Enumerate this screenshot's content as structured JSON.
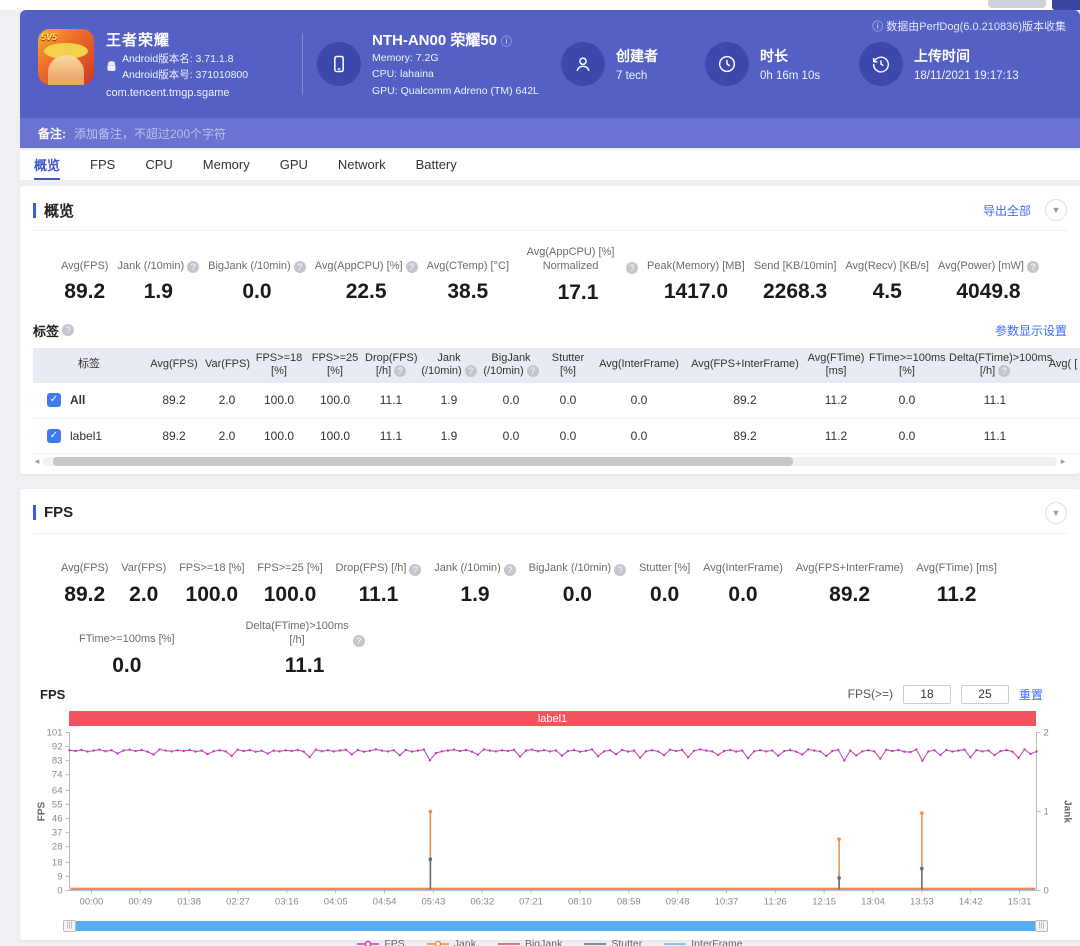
{
  "browser": {
    "note": ""
  },
  "collector_note": "ⓘ 数据由PerfDog(6.0.210836)版本收集",
  "header": {
    "app": {
      "name": "王者荣耀",
      "badge": "5V5",
      "version_name": "Android版本名: 3.71.1.8",
      "version_code": "Android版本号: 371010800",
      "package": "com.tencent.tmgp.sgame"
    },
    "device": {
      "name": "NTH-AN00 荣耀50",
      "info_icon": "ⓘ",
      "memory": "Memory: 7.2G",
      "cpu": "CPU: lahaina",
      "gpu": "GPU: Qualcomm Adreno (TM) 642L"
    },
    "creator": {
      "label": "创建者",
      "value": "7 tech"
    },
    "duration": {
      "label": "时长",
      "value": "0h 16m 10s"
    },
    "upload": {
      "label": "上传时间",
      "value": "18/11/2021 19:17:13"
    },
    "note": {
      "label": "备注:",
      "placeholder": "添加备注，不超过200个字符"
    }
  },
  "tabs": {
    "active_index": 0,
    "items": [
      "概览",
      "FPS",
      "CPU",
      "Memory",
      "GPU",
      "Network",
      "Battery"
    ]
  },
  "overview": {
    "title": "概览",
    "export_label": "导出全部",
    "metrics": [
      {
        "label": "Avg(FPS)",
        "value": "89.2",
        "help": false
      },
      {
        "label": "Jank (/10min)",
        "value": "1.9",
        "help": true
      },
      {
        "label": "BigJank (/10min)",
        "value": "0.0",
        "help": true
      },
      {
        "label": "Avg(AppCPU) [%]",
        "value": "22.5",
        "help": true
      },
      {
        "label": "Avg(CTemp) [°C]",
        "value": "38.5",
        "help": false
      },
      {
        "label": "Avg(AppCPU) [%] Normalized",
        "value": "17.1",
        "help": true
      },
      {
        "label": "Peak(Memory) [MB]",
        "value": "1417.0",
        "help": false
      },
      {
        "label": "Send [KB/10min]",
        "value": "2268.3",
        "help": false
      },
      {
        "label": "Avg(Recv) [KB/s]",
        "value": "4.5",
        "help": false
      },
      {
        "label": "Avg(Power) [mW]",
        "value": "4049.8",
        "help": true
      }
    ],
    "labels_section": {
      "title": "标签",
      "help": true,
      "settings_label": "参数显示设置",
      "columns": [
        {
          "label": "标签",
          "help": false
        },
        {
          "label": "Avg(FPS)",
          "help": false
        },
        {
          "label": "Var(FPS)",
          "help": false
        },
        {
          "label": "FPS>=18 [%]",
          "help": false
        },
        {
          "label": "FPS>=25 [%]",
          "help": false
        },
        {
          "label": "Drop(FPS) [/h]",
          "help": true
        },
        {
          "label": "Jank (/10min)",
          "help": true
        },
        {
          "label": "BigJank (/10min)",
          "help": true
        },
        {
          "label": "Stutter [%]",
          "help": false
        },
        {
          "label": "Avg(InterFrame)",
          "help": false
        },
        {
          "label": "Avg(FPS+InterFrame)",
          "help": false
        },
        {
          "label": "Avg(FTime) [ms]",
          "help": false
        },
        {
          "label": "FTime>=100ms [%]",
          "help": false
        },
        {
          "label": "Delta(FTime)>100ms [/h]",
          "help": true
        },
        {
          "label": "Avg( [",
          "help": false
        }
      ],
      "rows": [
        {
          "label": "All",
          "checked": true,
          "values": [
            "89.2",
            "2.0",
            "100.0",
            "100.0",
            "11.1",
            "1.9",
            "0.0",
            "0.0",
            "0.0",
            "89.2",
            "11.2",
            "0.0",
            "11.1",
            ""
          ]
        },
        {
          "label": "label1",
          "checked": true,
          "values": [
            "89.2",
            "2.0",
            "100.0",
            "100.0",
            "11.1",
            "1.9",
            "0.0",
            "0.0",
            "0.0",
            "89.2",
            "11.2",
            "0.0",
            "11.1",
            ""
          ]
        }
      ]
    }
  },
  "fps_section": {
    "title": "FPS",
    "metrics_row1": [
      {
        "label": "Avg(FPS)",
        "value": "89.2",
        "help": false
      },
      {
        "label": "Var(FPS)",
        "value": "2.0",
        "help": false
      },
      {
        "label": "FPS>=18 [%]",
        "value": "100.0",
        "help": false
      },
      {
        "label": "FPS>=25 [%]",
        "value": "100.0",
        "help": false
      },
      {
        "label": "Drop(FPS) [/h]",
        "value": "11.1",
        "help": true
      },
      {
        "label": "Jank (/10min)",
        "value": "1.9",
        "help": true
      },
      {
        "label": "BigJank (/10min)",
        "value": "0.0",
        "help": true
      },
      {
        "label": "Stutter [%]",
        "value": "0.0",
        "help": false
      },
      {
        "label": "Avg(InterFrame)",
        "value": "0.0",
        "help": false
      },
      {
        "label": "Avg(FPS+InterFrame)",
        "value": "89.2",
        "help": false
      },
      {
        "label": "Avg(FTime) [ms]",
        "value": "11.2",
        "help": false
      }
    ],
    "metrics_row2": [
      {
        "label": "FTime>=100ms [%]",
        "value": "0.0",
        "help": false
      },
      {
        "label": "Delta(FTime)>100ms [/h]",
        "value": "11.1",
        "help": true
      }
    ],
    "controls": {
      "chart_name": "FPS",
      "threshold_label": "FPS(>=)",
      "input1": "18",
      "input2": "25",
      "reset_label": "重置"
    }
  },
  "chart_data": {
    "type": "line",
    "banner_label": "label1",
    "ylabel_left": "FPS",
    "ylabel_right": "Jank",
    "ylim_left": [
      0,
      101
    ],
    "ylim_right": [
      0,
      2
    ],
    "y_ticks_left": [
      101,
      92,
      83,
      74,
      64,
      55,
      46,
      37,
      28,
      18,
      9,
      0
    ],
    "y_ticks_right": [
      2,
      1,
      0
    ],
    "x_ticks": [
      "00:00",
      "00:49",
      "01:38",
      "02:27",
      "03:16",
      "04:05",
      "04:54",
      "05:43",
      "06:32",
      "07:21",
      "08:10",
      "08:59",
      "09:48",
      "10:37",
      "11:26",
      "12:15",
      "13:04",
      "13:53",
      "14:42",
      "15:31"
    ],
    "x_tick_interval_seconds": 49,
    "duration_seconds": 970,
    "grid": false,
    "legend_position": "bottom",
    "legend": [
      {
        "name": "FPS",
        "color": "#c23cb8",
        "marker": "dot"
      },
      {
        "name": "Jank",
        "color": "#f28b3e",
        "marker": "dot"
      },
      {
        "name": "BigJank",
        "color": "#e65050",
        "marker": "line"
      },
      {
        "name": "Stutter",
        "color": "#5d6d85",
        "marker": "line"
      },
      {
        "name": "InterFrame",
        "color": "#62b8e8",
        "marker": "line"
      }
    ],
    "series": [
      {
        "name": "FPS",
        "axis": "left",
        "type": "line",
        "values": [
          89.6,
          89.2,
          89.9,
          88.8,
          89.4,
          90.1,
          89.0,
          89.7,
          87.6,
          89.5,
          90.0,
          89.1,
          89.8,
          88.7,
          86.9,
          90.2,
          89.4,
          88.9,
          89.6,
          89.2,
          89.9,
          88.8,
          89.4,
          87.2,
          89.0,
          89.7,
          88.9,
          86.0,
          90.0,
          89.1,
          89.8,
          88.7,
          89.3,
          87.5,
          89.4,
          88.9,
          89.6,
          89.2,
          89.9,
          88.8,
          85.2,
          90.1,
          89.0,
          89.7,
          88.9,
          89.5,
          90.0,
          87.0,
          89.8,
          88.7,
          89.3,
          90.2,
          89.4,
          88.9,
          89.6,
          86.4,
          89.9,
          88.8,
          89.4,
          90.1,
          83.2,
          87.8,
          88.9,
          89.5,
          90.0,
          89.1,
          89.8,
          88.7,
          86.8,
          90.2,
          89.4,
          88.9,
          89.6,
          89.2,
          89.9,
          85.6,
          89.4,
          90.1,
          89.0,
          89.7,
          88.9,
          89.5,
          86.2,
          89.1,
          89.8,
          88.7,
          89.3,
          90.2,
          85.9,
          88.9,
          89.6,
          87.1,
          89.9,
          88.8,
          89.4,
          84.9,
          89.0,
          89.7,
          88.9,
          86.5,
          90.0,
          89.1,
          89.8,
          85.3,
          89.3,
          90.2,
          89.4,
          88.9,
          86.7,
          89.2,
          89.9,
          88.8,
          89.4,
          84.6,
          89.0,
          89.7,
          88.9,
          89.5,
          86.1,
          89.1,
          89.8,
          88.7,
          86.9,
          90.2,
          89.4,
          88.9,
          86.0,
          89.2,
          89.9,
          83.1,
          89.4,
          86.3,
          89.0,
          89.7,
          88.9,
          84.3,
          90.0,
          89.1,
          89.8,
          88.7,
          88.5,
          90.2,
          82.9,
          88.9,
          89.6,
          86.6,
          89.9,
          88.8,
          89.4,
          90.1,
          85.1,
          89.7,
          88.9,
          89.5,
          86.4,
          89.1,
          89.8,
          88.7,
          84.8,
          90.2,
          87.3,
          88.9
        ]
      },
      {
        "name": "Jank",
        "axis": "right",
        "type": "spikes",
        "baseline": 0,
        "spikes": [
          {
            "t": 362,
            "v": 1.0
          },
          {
            "t": 772,
            "v": 0.65
          },
          {
            "t": 855,
            "v": 0.98
          }
        ]
      },
      {
        "name": "BigJank",
        "axis": "right",
        "type": "spikes",
        "baseline": 0,
        "spikes": []
      },
      {
        "name": "Stutter",
        "axis": "left",
        "type": "spikes",
        "baseline": 0,
        "spikes": [
          {
            "t": 362,
            "v": 20
          },
          {
            "t": 772,
            "v": 8
          },
          {
            "t": 855,
            "v": 14
          }
        ]
      },
      {
        "name": "InterFrame",
        "axis": "left",
        "type": "spikes",
        "baseline": 0,
        "spikes": []
      }
    ]
  }
}
